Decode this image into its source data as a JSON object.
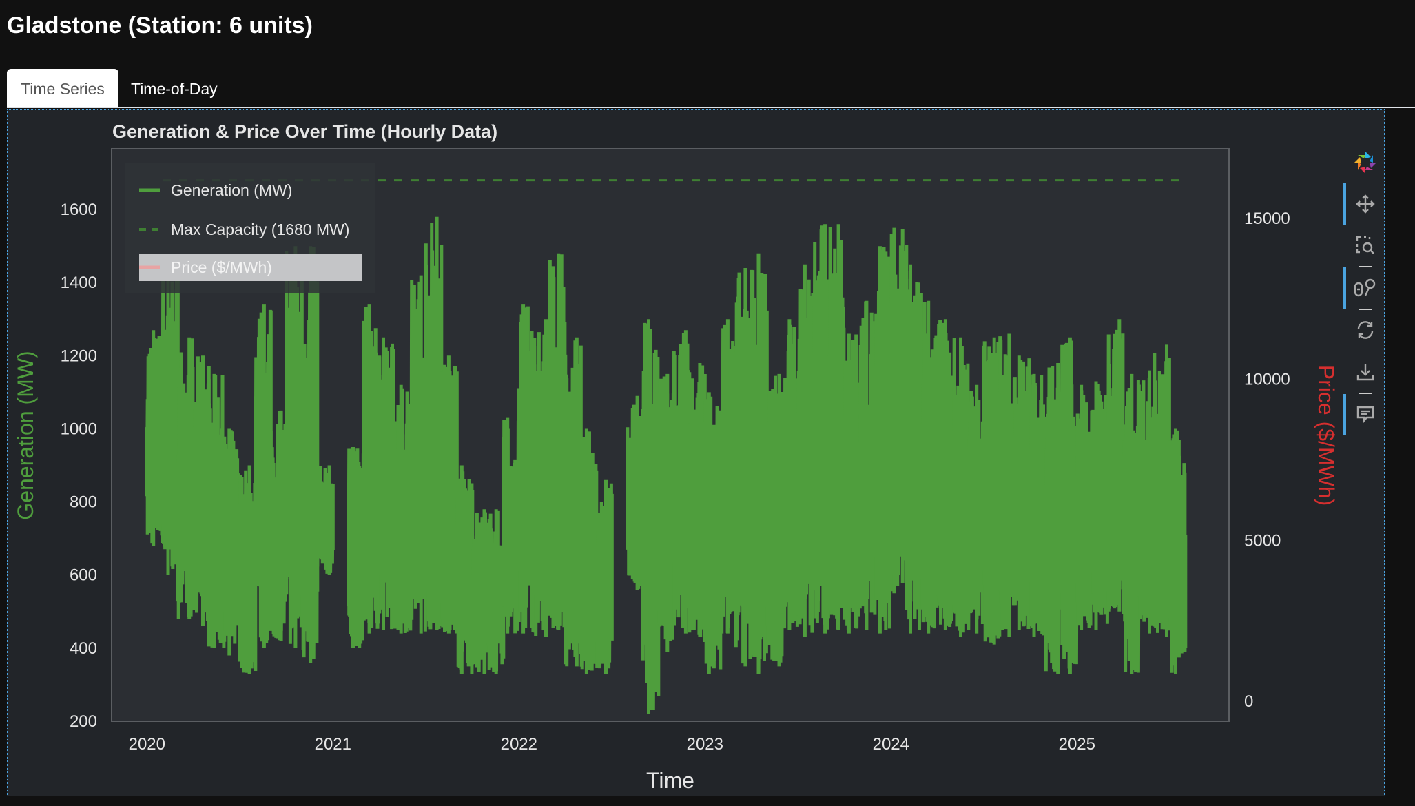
{
  "header": {
    "title": "Gladstone (Station: 6 units)"
  },
  "tabs": [
    {
      "label": "Time Series",
      "active": true
    },
    {
      "label": "Time-of-Day",
      "active": false
    }
  ],
  "toolbar": {
    "tools": [
      "bokeh-logo-icon",
      "pan-icon",
      "box-zoom-icon",
      "wheel-zoom-icon",
      "reset-icon",
      "save-icon",
      "hover-icon"
    ],
    "active": [
      "pan-icon",
      "wheel-zoom-icon",
      "hover-icon"
    ]
  },
  "chart_data": {
    "type": "line",
    "title": "Generation & Price Over Time (Hourly Data)",
    "xlabel": "Time",
    "ylabel": "Generation (MW)",
    "ylabel_right": "Price ($/MWh)",
    "x_ticks": [
      "2020",
      "2021",
      "2022",
      "2023",
      "2024",
      "2025"
    ],
    "y_ticks": [
      200,
      400,
      600,
      800,
      1000,
      1200,
      1400,
      1600
    ],
    "y_right_ticks": [
      0,
      5000,
      10000,
      15000
    ],
    "ylim": [
      200,
      1766
    ],
    "ylim_right": [
      -620,
      17160
    ],
    "xlim": [
      "2019-10",
      "2025-10"
    ],
    "grid": false,
    "legend_position": "top-left",
    "legend": [
      "Generation (MW)",
      "Max Capacity (1680 MW)",
      "Price ($/MWh)"
    ],
    "colors": {
      "generation": "#4f9e3d",
      "max_capacity": "#3f7f33",
      "price": "#e8a3a3",
      "price_axis_label": "#d62f2f"
    },
    "max_capacity": 1680,
    "price_hidden": true,
    "series": [
      {
        "name": "Generation (MW)",
        "note_monthly_envelope": "monthly min/max",
        "points": [
          [
            "2020-01",
            680,
            1270
          ],
          [
            "2020-02",
            600,
            1450
          ],
          [
            "2020-03",
            480,
            1250
          ],
          [
            "2020-04",
            460,
            1200
          ],
          [
            "2020-05",
            400,
            1150
          ],
          [
            "2020-06",
            380,
            1000
          ],
          [
            "2020-07",
            330,
            900
          ],
          [
            "2020-08",
            400,
            1340
          ],
          [
            "2020-09",
            420,
            1050
          ],
          [
            "2020-10",
            400,
            1500
          ],
          [
            "2020-11",
            360,
            1500
          ],
          [
            "2020-12",
            600,
            900
          ],
          [
            "2021-02",
            400,
            950
          ],
          [
            "2021-03",
            440,
            1340
          ],
          [
            "2021-04",
            450,
            1250
          ],
          [
            "2021-05",
            440,
            1120
          ],
          [
            "2021-06",
            440,
            1420
          ],
          [
            "2021-07",
            450,
            1580
          ],
          [
            "2021-08",
            440,
            1200
          ],
          [
            "2021-09",
            330,
            900
          ],
          [
            "2021-10",
            330,
            780
          ],
          [
            "2021-11",
            330,
            780
          ],
          [
            "2021-12",
            440,
            1030
          ],
          [
            "2022-01",
            440,
            1340
          ],
          [
            "2022-02",
            430,
            1300
          ],
          [
            "2022-03",
            450,
            1480
          ],
          [
            "2022-04",
            350,
            1250
          ],
          [
            "2022-05",
            330,
            1000
          ],
          [
            "2022-06",
            330,
            860
          ],
          [
            "2022-08",
            560,
            1090
          ],
          [
            "2022-09",
            220,
            1300
          ],
          [
            "2022-10",
            390,
            1150
          ],
          [
            "2022-11",
            440,
            1270
          ],
          [
            "2022-12",
            430,
            1180
          ],
          [
            "2023-01",
            330,
            1100
          ],
          [
            "2023-02",
            440,
            1300
          ],
          [
            "2023-03",
            350,
            1440
          ],
          [
            "2023-04",
            330,
            1480
          ],
          [
            "2023-05",
            350,
            1150
          ],
          [
            "2023-06",
            450,
            1300
          ],
          [
            "2023-07",
            430,
            1450
          ],
          [
            "2023-08",
            440,
            1560
          ],
          [
            "2023-09",
            450,
            1560
          ],
          [
            "2023-10",
            440,
            1260
          ],
          [
            "2023-11",
            450,
            1350
          ],
          [
            "2023-12",
            440,
            1500
          ],
          [
            "2024-01",
            550,
            1550
          ],
          [
            "2024-02",
            440,
            1450
          ],
          [
            "2024-03",
            440,
            1350
          ],
          [
            "2024-04",
            450,
            1300
          ],
          [
            "2024-05",
            430,
            1250
          ],
          [
            "2024-06",
            440,
            1120
          ],
          [
            "2024-07",
            410,
            1250
          ],
          [
            "2024-08",
            430,
            1260
          ],
          [
            "2024-09",
            450,
            1200
          ],
          [
            "2024-10",
            430,
            1150
          ],
          [
            "2024-11",
            330,
            1180
          ],
          [
            "2024-12",
            330,
            1250
          ],
          [
            "2025-01",
            450,
            1120
          ],
          [
            "2025-02",
            450,
            1130
          ],
          [
            "2025-03",
            500,
            1300
          ],
          [
            "2025-04",
            330,
            1150
          ],
          [
            "2025-05",
            440,
            1160
          ],
          [
            "2025-06",
            430,
            1230
          ],
          [
            "2025-07",
            330,
            1000
          ]
        ]
      },
      {
        "name": "Max Capacity (1680 MW)",
        "value": 1680
      },
      {
        "name": "Price ($/MWh)",
        "points": []
      }
    ]
  }
}
